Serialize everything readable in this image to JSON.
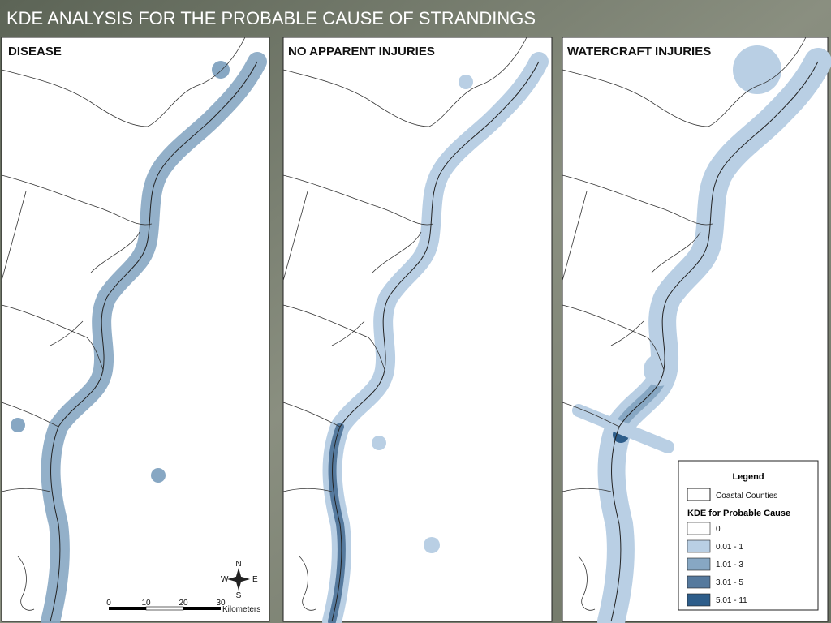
{
  "title": "KDE ANALYSIS FOR THE PROBABLE CAUSE OF STRANDINGS",
  "panels": [
    {
      "title": "DISEASE"
    },
    {
      "title": "NO APPARENT INJURIES"
    },
    {
      "title": "WATERCRAFT INJURIES"
    }
  ],
  "legend": {
    "title": "Legend",
    "counties": "Coastal Counties",
    "kde_title": "KDE for Probable Cause",
    "classes": [
      {
        "label": "0",
        "color": "#ffffff"
      },
      {
        "label": "0.01 - 1",
        "color": "#b9cfe4"
      },
      {
        "label": "1.01 - 3",
        "color": "#87a7c3"
      },
      {
        "label": "3.01 - 5",
        "color": "#55799d"
      },
      {
        "label": "5.01 - 11",
        "color": "#2d5d8a"
      }
    ]
  },
  "scale_bar": {
    "ticks": [
      "0",
      "10",
      "20",
      "30"
    ],
    "unit": "Kilometers"
  },
  "compass": {
    "n": "N",
    "e": "E",
    "s": "S",
    "w": "W"
  }
}
